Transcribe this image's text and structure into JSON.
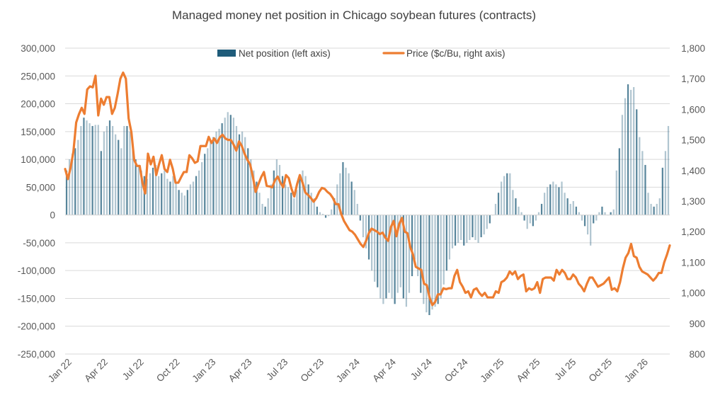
{
  "chart_data": {
    "type": "bar-line",
    "title": "Managed money net position in Chicago soybean futures (contracts)",
    "grid": true,
    "legend_position": "top",
    "x_tick_labels": [
      "Jan 22",
      "Apr 22",
      "Jul 22",
      "Oct 22",
      "Jan 23",
      "Apr 23",
      "Jul 23",
      "Oct 23",
      "Jan 24",
      "Apr 24",
      "Jul 24",
      "Oct 24",
      "Jan 25",
      "Apr 25",
      "Jul 25",
      "Oct 25",
      "Jan 26"
    ],
    "y_left": {
      "min": -250000,
      "max": 300000,
      "step": 50000,
      "tick_labels": [
        "-250,000",
        "-200,000",
        "-150,000",
        "-100,000",
        "-50,000",
        "0",
        "50,000",
        "100,000",
        "150,000",
        "200,000",
        "250,000",
        "300,000"
      ]
    },
    "y_right": {
      "min": 800,
      "max": 1800,
      "step": 100,
      "tick_labels": [
        "800",
        "900",
        "1,000",
        "1,100",
        "1,200",
        "1,300",
        "1,400",
        "1,500",
        "1,600",
        "1,700",
        "1,800"
      ]
    },
    "series": [
      {
        "name": "Net position (left axis)",
        "type": "bar",
        "axis": "left",
        "color": "#1f5c7a",
        "values": [
          80000,
          100000,
          110000,
          120000,
          135000,
          160000,
          175000,
          170000,
          165000,
          160000,
          162000,
          162000,
          115000,
          150000,
          160000,
          170000,
          160000,
          145000,
          135000,
          120000,
          160000,
          160000,
          150000,
          120000,
          100000,
          90000,
          80000,
          70000,
          65000,
          75000,
          85000,
          90000,
          70000,
          75000,
          80000,
          65000,
          60000,
          70000,
          60000,
          45000,
          40000,
          35000,
          45000,
          55000,
          60000,
          70000,
          80000,
          95000,
          110000,
          120000,
          135000,
          140000,
          150000,
          155000,
          165000,
          175000,
          185000,
          180000,
          175000,
          160000,
          145000,
          150000,
          140000,
          120000,
          100000,
          80000,
          60000,
          40000,
          20000,
          15000,
          30000,
          55000,
          80000,
          100000,
          90000,
          70000,
          55000,
          50000,
          40000,
          30000,
          45000,
          65000,
          80000,
          70000,
          55000,
          40000,
          30000,
          15000,
          5000,
          2000,
          -5000,
          -2000,
          10000,
          30000,
          55000,
          75000,
          95000,
          85000,
          75000,
          60000,
          45000,
          20000,
          -10000,
          -40000,
          -60000,
          -80000,
          -100000,
          -120000,
          -130000,
          -150000,
          -160000,
          -150000,
          -140000,
          -150000,
          -160000,
          -140000,
          -130000,
          -150000,
          -165000,
          -140000,
          -110000,
          -80000,
          -110000,
          -140000,
          -160000,
          -175000,
          -180000,
          -170000,
          -165000,
          -160000,
          -150000,
          -125000,
          -100000,
          -80000,
          -60000,
          -55000,
          -50000,
          -45000,
          -55000,
          -50000,
          -45000,
          -40000,
          -45000,
          -50000,
          -40000,
          -35000,
          -25000,
          -15000,
          0,
          20000,
          40000,
          60000,
          70000,
          75000,
          75000,
          45000,
          30000,
          15000,
          5000,
          -10000,
          -25000,
          -15000,
          -20000,
          -10000,
          5000,
          20000,
          40000,
          50000,
          55000,
          60000,
          55000,
          50000,
          60000,
          40000,
          30000,
          20000,
          25000,
          15000,
          5000,
          -10000,
          -20000,
          -35000,
          -55000,
          -15000,
          -10000,
          5000,
          15000,
          5000,
          0,
          5000,
          10000,
          80000,
          120000,
          180000,
          210000,
          235000,
          225000,
          230000,
          190000,
          140000,
          115000,
          90000,
          40000,
          20000,
          15000,
          20000,
          30000,
          85000,
          115000,
          160000
        ]
      },
      {
        "name": "Price ($c/Bu, right axis)",
        "type": "line",
        "axis": "right",
        "color": "#ed7d31",
        "values": [
          1405,
          1372,
          1410,
          1462,
          1557,
          1584,
          1605,
          1585,
          1665,
          1675,
          1672,
          1710,
          1580,
          1635,
          1615,
          1640,
          1640,
          1585,
          1605,
          1650,
          1700,
          1720,
          1700,
          1570,
          1525,
          1435,
          1415,
          1415,
          1360,
          1325,
          1455,
          1420,
          1445,
          1385,
          1420,
          1450,
          1405,
          1395,
          1435,
          1405,
          1360,
          1360,
          1378,
          1395,
          1395,
          1450,
          1440,
          1425,
          1430,
          1480,
          1480,
          1480,
          1510,
          1490,
          1505,
          1490,
          1508,
          1517,
          1505,
          1500,
          1500,
          1485,
          1465,
          1495,
          1480,
          1455,
          1435,
          1420,
          1380,
          1330,
          1355,
          1378,
          1395,
          1350,
          1348,
          1345,
          1368,
          1380,
          1360,
          1345,
          1385,
          1375,
          1340,
          1315,
          1355,
          1385,
          1360,
          1328,
          1320,
          1310,
          1298,
          1310,
          1330,
          1343,
          1340,
          1330,
          1323,
          1310,
          1290,
          1290,
          1258,
          1235,
          1220,
          1205,
          1200,
          1190,
          1175,
          1160,
          1150,
          1170,
          1195,
          1210,
          1205,
          1200,
          1192,
          1197,
          1180,
          1170,
          1215,
          1235,
          1185,
          1225,
          1245,
          1200,
          1195,
          1150,
          1125,
          1085,
          1080,
          1075,
          1030,
          1025,
          985,
          960,
          970,
          995,
          995,
          1015,
          1012,
          1015,
          1015,
          1055,
          1075,
          1035,
          1020,
          1000,
          1005,
          985,
          1010,
          1015,
          1000,
          990,
          1000,
          985,
          985,
          985,
          1005,
          1000,
          1035,
          1040,
          1050,
          1070,
          1060,
          1070,
          1045,
          1055,
          1060,
          1005,
          1015,
          1010,
          1015,
          1035,
          1000,
          1045,
          1050,
          1050,
          1050,
          1040,
          1075,
          1060,
          1075,
          1065,
          1045,
          1045,
          1060,
          1050,
          1030,
          1020,
          1005,
          1030,
          1050,
          1050,
          1035,
          1020,
          1025,
          1030,
          1040,
          1050,
          1010,
          1015,
          1005,
          1035,
          1080,
          1115,
          1130,
          1160,
          1120,
          1115,
          1085,
          1070,
          1065,
          1060,
          1050,
          1040,
          1050,
          1065,
          1065,
          1100,
          1125,
          1155
        ]
      }
    ]
  }
}
